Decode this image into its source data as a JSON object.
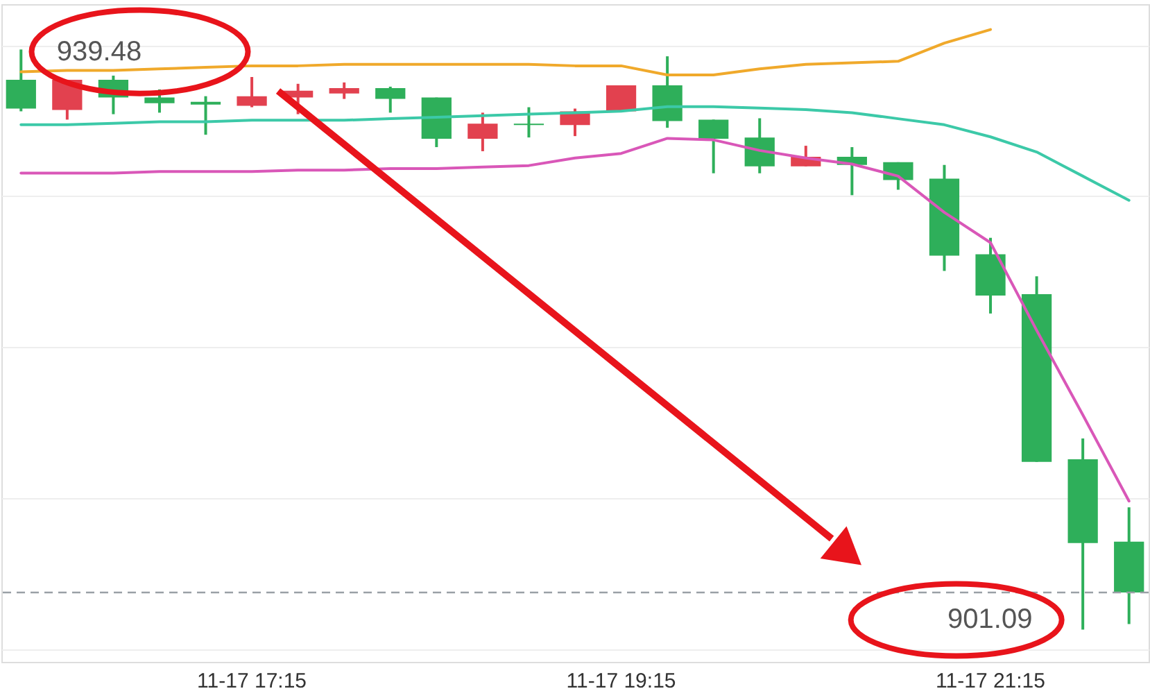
{
  "chart_data": {
    "type": "candlestick",
    "categories": [
      null,
      null,
      null,
      null,
      null,
      "11-17 17:15",
      null,
      null,
      null,
      null,
      null,
      null,
      null,
      "11-17 19:15",
      null,
      null,
      null,
      null,
      null,
      null,
      null,
      "11-17 21:15",
      null,
      null,
      null
    ],
    "ohlc": [
      [
        937.48,
        939.48,
        935.39,
        935.57
      ],
      [
        935.48,
        937.48,
        934.84,
        937.48
      ],
      [
        937.48,
        937.75,
        935.2,
        936.3
      ],
      [
        936.3,
        936.84,
        935.3,
        935.93
      ],
      [
        936.02,
        936.39,
        933.84,
        935.84
      ],
      [
        935.75,
        937.66,
        935.66,
        936.39
      ],
      [
        936.3,
        937.21,
        935.2,
        936.75
      ],
      [
        936.57,
        937.3,
        936.21,
        936.93
      ],
      [
        936.93,
        937.02,
        935.3,
        936.21
      ],
      [
        936.3,
        936.3,
        933.02,
        933.57
      ],
      [
        933.57,
        935.3,
        932.75,
        934.57
      ],
      [
        934.57,
        935.66,
        933.66,
        934.48
      ],
      [
        934.48,
        935.57,
        933.75,
        935.39
      ],
      [
        935.39,
        937.11,
        935.39,
        937.11
      ],
      [
        937.11,
        939.03,
        934.3,
        934.75
      ],
      [
        934.84,
        934.84,
        931.29,
        933.57
      ],
      [
        933.66,
        934.93,
        931.29,
        931.75
      ],
      [
        931.75,
        933.11,
        931.75,
        932.38
      ],
      [
        932.38,
        933.02,
        929.84,
        931.84
      ],
      [
        932.02,
        932.02,
        930.2,
        930.84
      ],
      [
        930.93,
        931.84,
        924.83,
        925.84
      ],
      [
        925.93,
        927.02,
        922.01,
        923.2
      ],
      [
        923.29,
        924.47,
        912.19,
        912.19
      ],
      [
        912.37,
        913.74,
        901.09,
        906.82
      ],
      [
        906.91,
        909.19,
        901.46,
        903.55
      ]
    ],
    "colors": [
      "#2eaf5a",
      "#e2414f",
      "#2eaf5a",
      "#2eaf5a",
      "#2eaf5a",
      "#e2414f",
      "#e2414f",
      "#e2414f",
      "#2eaf5a",
      "#2eaf5a",
      "#e2414f",
      "#2eaf5a",
      "#e2414f",
      "#e2414f",
      "#2eaf5a",
      "#2eaf5a",
      "#2eaf5a",
      "#e2414f",
      "#2eaf5a",
      "#2eaf5a",
      "#2eaf5a",
      "#2eaf5a",
      "#2eaf5a",
      "#2eaf5a",
      "#2eaf5a"
    ],
    "series": [
      {
        "type": "line",
        "color": "#f0a92b",
        "values": [
          938.0,
          938.1,
          938.1,
          938.2,
          938.3,
          938.4,
          938.4,
          938.5,
          938.5,
          938.5,
          938.5,
          938.5,
          938.4,
          938.4,
          937.8,
          937.8,
          938.2,
          938.5,
          938.6,
          938.7,
          939.9,
          940.8,
          null,
          null,
          null
        ]
      },
      {
        "type": "line",
        "color": "#3cc9a8",
        "values": [
          934.5,
          934.5,
          934.6,
          934.7,
          934.7,
          934.8,
          934.8,
          934.8,
          934.9,
          935.0,
          935.1,
          935.2,
          935.3,
          935.4,
          935.7,
          935.7,
          935.6,
          935.5,
          935.3,
          934.9,
          934.5,
          933.7,
          932.7,
          931.1,
          929.5
        ]
      },
      {
        "type": "line",
        "color": "#d957b8",
        "values": [
          931.3,
          931.3,
          931.3,
          931.4,
          931.4,
          931.4,
          931.5,
          931.5,
          931.6,
          931.6,
          931.7,
          931.8,
          932.3,
          932.6,
          933.6,
          933.5,
          932.8,
          932.3,
          931.9,
          931.1,
          928.7,
          926.7,
          920.9,
          915.3,
          909.6
        ]
      }
    ],
    "ylim": [
      898.96,
      942.48
    ],
    "yticks": [
      {
        "value": 939.75,
        "label": null
      },
      {
        "value": 929.84,
        "label": null
      },
      {
        "value": 919.83,
        "label": null
      },
      {
        "value": 909.82,
        "label": null
      },
      {
        "value": 899.82,
        "label": null
      }
    ],
    "grid": "y",
    "tick_labels": "x",
    "ref_lines": [
      {
        "axis": "y",
        "value": 903.55,
        "color": "#9aa0a6",
        "line_style": "dashed"
      }
    ],
    "annotations": [
      "939.48",
      "901.09"
    ]
  }
}
